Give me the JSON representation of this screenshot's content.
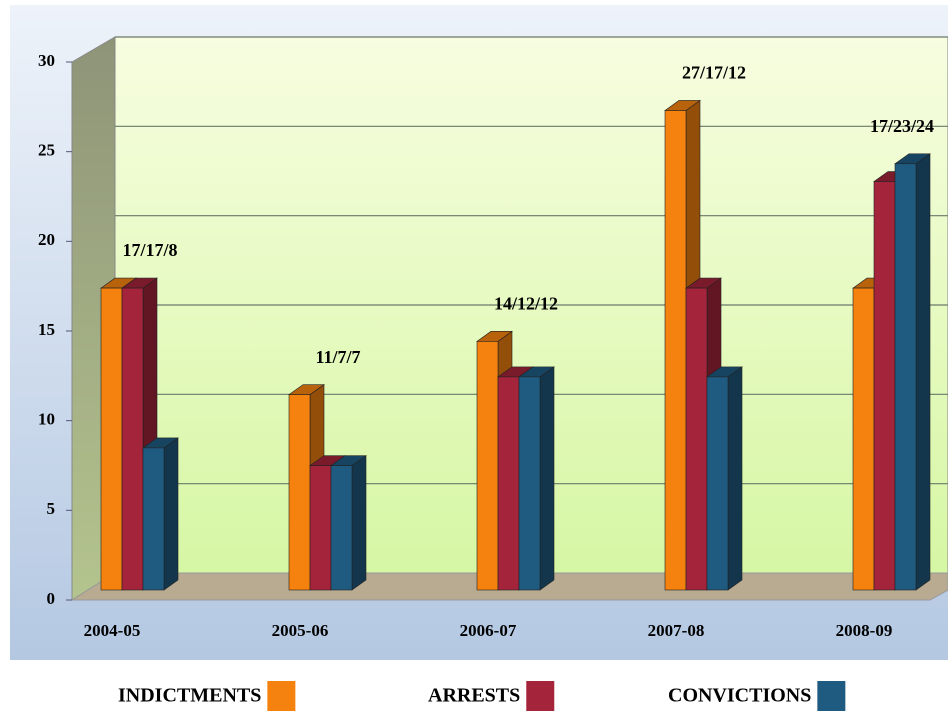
{
  "chart_data": {
    "type": "bar3d",
    "categories": [
      "2004-05",
      "2005-06",
      "2006-07",
      "2007-08",
      "2008-09"
    ],
    "series": [
      {
        "name": "INDICTMENTS",
        "color": "#f5820f",
        "values": [
          17,
          11,
          14,
          27,
          17
        ]
      },
      {
        "name": "ARRESTS",
        "color": "#a3243b",
        "values": [
          17,
          7,
          12,
          17,
          23
        ]
      },
      {
        "name": "CONVICTIONS",
        "color": "#1f5a80",
        "values": [
          8,
          7,
          12,
          12,
          24
        ]
      }
    ],
    "annotations": [
      "17/17/8",
      "11/7/7",
      "14/12/12",
      "27/17/12",
      "17/23/24"
    ],
    "ylim": [
      0,
      30
    ],
    "yticks": [
      0,
      5,
      10,
      15,
      20,
      25,
      30
    ],
    "grid": true,
    "legend": "bottom"
  }
}
